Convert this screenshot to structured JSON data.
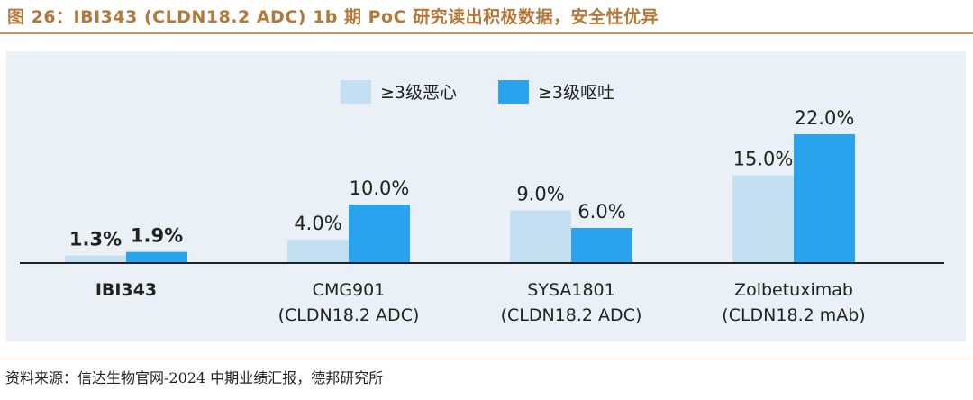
{
  "figure": {
    "title": "图 26：IBI343 (CLDN18.2 ADC) 1b 期 PoC 研究读出积极数据，安全性优异",
    "source": "资料来源：信达生物官网-2024 中期业绩汇报，德邦研究所"
  },
  "colors": {
    "title": "#b4793a",
    "rule": "#c9925a",
    "panel_bg": "#eaf0f6",
    "nausea": "#c5dff2",
    "vomiting": "#2aa3ef",
    "axis": "#222222"
  },
  "chart_data": {
    "type": "bar",
    "categories": [
      [
        "IBI343"
      ],
      [
        "CMG901",
        "(CLDN18.2 ADC)"
      ],
      [
        "SYSA1801",
        "(CLDN18.2 ADC)"
      ],
      [
        "Zolbetuximab",
        "(CLDN18.2 mAb)"
      ]
    ],
    "bold_categories": [
      0
    ],
    "series": [
      {
        "name": "≥3级恶心",
        "values": [
          1.3,
          4.0,
          9.0,
          15.0
        ],
        "labels": [
          "1.3%",
          "4.0%",
          "9.0%",
          "15.0%"
        ]
      },
      {
        "name": "≥3级呕吐",
        "values": [
          1.9,
          10.0,
          6.0,
          22.0
        ],
        "labels": [
          "1.9%",
          "10.0%",
          "6.0%",
          "22.0%"
        ]
      }
    ],
    "bold_labels_category": 0,
    "ylim": [
      0,
      22.0
    ],
    "legend_position": "top-center",
    "grid": false,
    "xlabel": "",
    "ylabel": ""
  }
}
